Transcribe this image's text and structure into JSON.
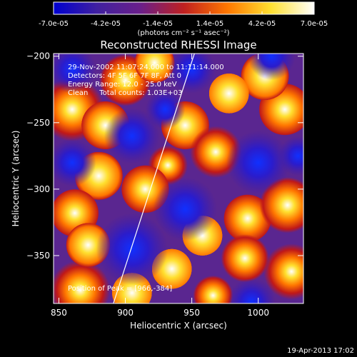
{
  "chart_data": {
    "type": "heatmap",
    "title": "Reconstructed RHESSI Image",
    "xlabel": "Heliocentric X (arcsec)",
    "ylabel": "Heliocentric Y (arcsec)",
    "xlim": [
      846,
      1034
    ],
    "ylim": [
      -386,
      -198
    ],
    "x_ticks": [
      850,
      900,
      950,
      1000
    ],
    "y_ticks": [
      -200,
      -250,
      -300,
      -350
    ],
    "colorbar": {
      "label": "(photons cm⁻² s⁻¹ asec⁻²)",
      "min": -7e-05,
      "max": 7e-05,
      "tick_labels": [
        "-7.0e-05",
        "-4.2e-05",
        "-1.4e-05",
        "1.4e-05",
        "4.2e-05",
        "7.0e-05"
      ],
      "colors": [
        "#0000d0",
        "#4020a0",
        "#6a1f8a",
        "#c02020",
        "#ff7700",
        "#ffe030",
        "#ffffff"
      ]
    },
    "annotations": [
      "29-Nov-2002 11:07:24.000 to 11:11:14.000",
      "Detectors: 4F 5F 6F 7F 8F, Att 0",
      "Energy Range: 12.0 - 25.0 keV",
      "Clean     Total counts: 1.03E+03"
    ],
    "peak_label": "Position of Peak = [966,-384]",
    "peak": [
      966,
      -384
    ],
    "limb_line": [
      [
        891,
        -386
      ],
      [
        952,
        -198
      ]
    ],
    "blobs": [
      {
        "x": 860,
        "y": -240,
        "v": 1.0,
        "r": 16
      },
      {
        "x": 900,
        "y": -218,
        "v": 0.9,
        "r": 13
      },
      {
        "x": 945,
        "y": -252,
        "v": 0.7,
        "r": 12
      },
      {
        "x": 968,
        "y": -272,
        "v": 1.0,
        "r": 13
      },
      {
        "x": 932,
        "y": -282,
        "v": 1.0,
        "r": 10
      },
      {
        "x": 915,
        "y": -300,
        "v": 0.8,
        "r": 12
      },
      {
        "x": 885,
        "y": -252,
        "v": 0.7,
        "r": 12
      },
      {
        "x": 880,
        "y": -290,
        "v": 0.6,
        "r": 12
      },
      {
        "x": 862,
        "y": -318,
        "v": 0.8,
        "r": 12
      },
      {
        "x": 866,
        "y": -376,
        "v": 1.0,
        "r": 15
      },
      {
        "x": 872,
        "y": -342,
        "v": 0.6,
        "r": 11
      },
      {
        "x": 992,
        "y": -322,
        "v": 0.8,
        "r": 12
      },
      {
        "x": 1022,
        "y": -312,
        "v": 0.9,
        "r": 14
      },
      {
        "x": 1020,
        "y": -240,
        "v": 0.8,
        "r": 13
      },
      {
        "x": 1005,
        "y": -215,
        "v": 0.6,
        "r": 12
      },
      {
        "x": 1025,
        "y": -362,
        "v": 1.0,
        "r": 14
      },
      {
        "x": 990,
        "y": -352,
        "v": 0.9,
        "r": 12
      },
      {
        "x": 966,
        "y": -380,
        "v": 0.9,
        "r": 10
      },
      {
        "x": 958,
        "y": -335,
        "v": 0.5,
        "r": 10
      },
      {
        "x": 935,
        "y": -360,
        "v": 0.5,
        "r": 10
      },
      {
        "x": 905,
        "y": -378,
        "v": 0.5,
        "r": 10
      },
      {
        "x": 978,
        "y": -228,
        "v": 0.5,
        "r": 10
      },
      {
        "x": 922,
        "y": -205,
        "v": 0.6,
        "r": 10
      },
      {
        "x": 950,
        "y": -210,
        "v": -0.5,
        "r": 12
      },
      {
        "x": 905,
        "y": -345,
        "v": -0.9,
        "r": 18
      },
      {
        "x": 945,
        "y": -315,
        "v": -0.8,
        "r": 16
      },
      {
        "x": 905,
        "y": -260,
        "v": -0.6,
        "r": 14
      },
      {
        "x": 1000,
        "y": -280,
        "v": -0.7,
        "r": 16
      },
      {
        "x": 1010,
        "y": -200,
        "v": -0.5,
        "r": 12
      },
      {
        "x": 860,
        "y": -210,
        "v": -0.6,
        "r": 12
      },
      {
        "x": 995,
        "y": -385,
        "v": -0.7,
        "r": 12
      },
      {
        "x": 860,
        "y": -280,
        "v": -0.5,
        "r": 12
      },
      {
        "x": 930,
        "y": -240,
        "v": -0.5,
        "r": 10
      },
      {
        "x": 1030,
        "y": -275,
        "v": -0.4,
        "r": 10
      }
    ]
  },
  "footer": {
    "timestamp": "19-Apr-2013 17:02"
  }
}
